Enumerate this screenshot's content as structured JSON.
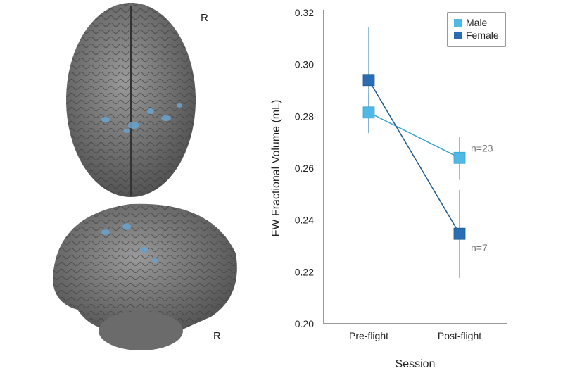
{
  "brain_labels": {
    "top_view": "R",
    "side_view": "R"
  },
  "chart_data": {
    "type": "line",
    "title": "",
    "xlabel": "Session",
    "ylabel": "FW Fractional Volume (mL)",
    "categories": [
      "Pre-flight",
      "Post-flight"
    ],
    "ylim": [
      0.2,
      0.32
    ],
    "yticks": [
      "0.20",
      "0.22",
      "0.24",
      "0.26",
      "0.28",
      "0.30",
      "0.32"
    ],
    "grid": false,
    "legend_placement": "top-right",
    "series": [
      {
        "name": "Male",
        "color": "#4fb8e6",
        "line_color": "#3aa6c9",
        "values": [
          0.2815,
          0.264
        ],
        "err_low": [
          0.274,
          0.2555
        ],
        "err_high": [
          0.289,
          0.272
        ],
        "annotation": "n=23"
      },
      {
        "name": "Female",
        "color": "#2a6db5",
        "line_color": "#1f5a8a",
        "values": [
          0.294,
          0.2347
        ],
        "err_low": [
          0.2735,
          0.2177
        ],
        "err_high": [
          0.3145,
          0.2516
        ],
        "annotation": "n=7"
      }
    ]
  }
}
